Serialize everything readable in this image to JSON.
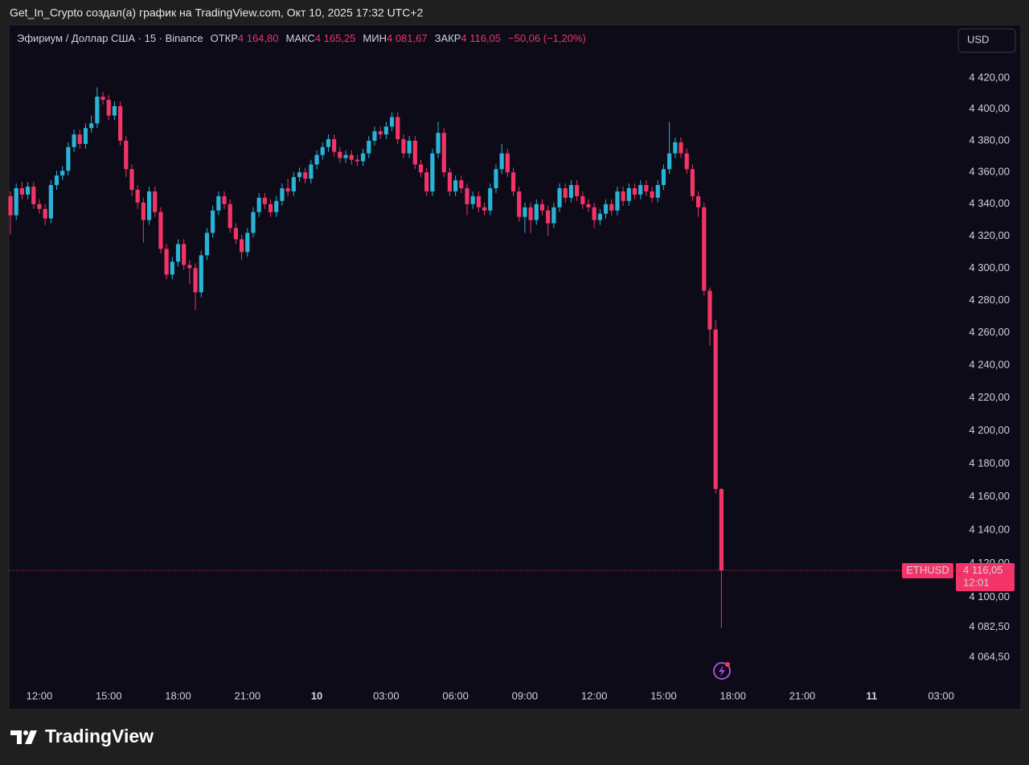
{
  "header": {
    "text": "Get_In_Crypto создал(а) график на TradingView.com, Окт 10, 2025 17:32 UTC+2"
  },
  "chart_data": {
    "type": "candlestick",
    "title": "Эфириум / Доллар США · 15 · Binance",
    "currency": "USD",
    "legend": [
      {
        "label": "ОТКР",
        "value": "4 164,80"
      },
      {
        "label": "МАКС",
        "value": "4 165,25"
      },
      {
        "label": "МИН",
        "value": "4 081,67"
      },
      {
        "label": "ЗАКР",
        "value": "4 116,05"
      }
    ],
    "change": "−50,06 (−1,20%)",
    "categories": [
      null,
      null,
      null,
      null,
      null,
      "12:00",
      null,
      null,
      null,
      null,
      null,
      null,
      null,
      null,
      null,
      null,
      null,
      "15:00",
      null,
      null,
      null,
      null,
      null,
      null,
      null,
      null,
      null,
      null,
      null,
      "18:00",
      null,
      null,
      null,
      null,
      null,
      null,
      null,
      null,
      null,
      null,
      null,
      "21:00",
      null,
      null,
      null,
      null,
      null,
      null,
      null,
      null,
      null,
      null,
      null,
      "10",
      null,
      null,
      null,
      null,
      null,
      null,
      null,
      null,
      null,
      null,
      null,
      "03:00",
      null,
      null,
      null,
      null,
      null,
      null,
      null,
      null,
      null,
      null,
      null,
      "06:00",
      null,
      null,
      null,
      null,
      null,
      null,
      null,
      null,
      null,
      null,
      null,
      "09:00",
      null,
      null,
      null,
      null,
      null,
      null,
      null,
      null,
      null,
      null,
      null,
      "12:00",
      null,
      null,
      null,
      null,
      null,
      null,
      null,
      null,
      null,
      null,
      null,
      "15:00",
      null,
      null,
      null,
      null,
      null,
      null,
      null,
      null,
      null,
      null,
      null,
      "18:00",
      null,
      null,
      null,
      null,
      null,
      null,
      null,
      null,
      null,
      null,
      null,
      "21:00",
      null,
      null,
      null,
      null,
      null,
      null,
      null,
      null,
      null,
      null,
      null,
      "11",
      null,
      null,
      null,
      null,
      null,
      null,
      null,
      null,
      null,
      null,
      null,
      "03:00"
    ],
    "open": [
      4345,
      4333,
      4350,
      4346,
      4351,
      4340,
      4337,
      4331,
      4352,
      4358,
      4361,
      4376,
      4384,
      4378,
      4388,
      4391,
      4408,
      4406,
      4396,
      4402,
      4380,
      4362,
      4349,
      4341,
      4330,
      4348,
      4335,
      4312,
      4296,
      4304,
      4315,
      4302,
      4300,
      4285,
      4308,
      4322,
      4336,
      4345,
      4340,
      4325,
      4318,
      4310,
      4322,
      4335,
      4344,
      4340,
      4335,
      4342,
      4350,
      4348,
      4357,
      4360,
      4356,
      4365,
      4371,
      4376,
      4381,
      4373,
      4369,
      4371,
      4368,
      4367,
      4372,
      4380,
      4386,
      4384,
      4389,
      4395,
      4381,
      4372,
      4380,
      4365,
      4360,
      4348,
      4372,
      4385,
      4360,
      4348,
      4355,
      4350,
      4340,
      4345,
      4338,
      4336,
      4350,
      4362,
      4372,
      4360,
      4348,
      4332,
      4338,
      4330,
      4340,
      4336,
      4328,
      4338,
      4350,
      4344,
      4352,
      4345,
      4340,
      4338,
      4330,
      4334,
      4340,
      4336,
      4348,
      4342,
      4350,
      4346,
      4352,
      4348,
      4344,
      4352,
      4362,
      4372,
      4379,
      4372,
      4362,
      4345,
      4338,
      4286,
      4262,
      4164.8,
      null,
      null,
      null,
      null,
      null,
      null,
      null,
      null,
      null,
      null,
      null,
      null,
      null,
      null,
      null,
      null,
      null,
      null,
      null,
      null,
      null,
      null,
      null,
      null,
      null,
      null,
      null,
      null,
      null,
      null,
      null,
      null,
      null,
      null,
      null,
      null,
      null,
      null
    ],
    "high": [
      4348,
      4353,
      4354,
      4354,
      4354,
      4343,
      4340,
      4355,
      4361,
      4364,
      4379,
      4387,
      4387,
      4391,
      4396,
      4414,
      4411,
      4409,
      4405,
      4405,
      4383,
      4365,
      4352,
      4344,
      4351,
      4351,
      4338,
      4315,
      4307,
      4318,
      4318,
      4305,
      4303,
      4311,
      4325,
      4339,
      4348,
      4348,
      4343,
      4328,
      4321,
      4325,
      4338,
      4347,
      4347,
      4343,
      4345,
      4353,
      4356,
      4360,
      4363,
      4363,
      4368,
      4374,
      4379,
      4384,
      4384,
      4376,
      4374,
      4374,
      4371,
      4375,
      4383,
      4389,
      4389,
      4392,
      4398,
      4398,
      4384,
      4383,
      4383,
      4368,
      4363,
      4375,
      4392,
      4388,
      4363,
      4358,
      4358,
      4353,
      4348,
      4348,
      4341,
      4353,
      4365,
      4378,
      4375,
      4363,
      4351,
      4341,
      4341,
      4343,
      4343,
      4339,
      4341,
      4353,
      4353,
      4355,
      4355,
      4348,
      4343,
      4341,
      4337,
      4343,
      4343,
      4351,
      4351,
      4353,
      4353,
      4355,
      4355,
      4351,
      4355,
      4365,
      4392,
      4382,
      4382,
      4375,
      4365,
      4348,
      4341,
      4288,
      4268,
      4165.25,
      null,
      null,
      null,
      null,
      null,
      null,
      null,
      null,
      null,
      null,
      null,
      null,
      null,
      null,
      null,
      null,
      null,
      null,
      null,
      null,
      null,
      null,
      null,
      null,
      null,
      null,
      null,
      null,
      null,
      null,
      null,
      null,
      null,
      null,
      null,
      null,
      null,
      null
    ],
    "low": [
      4321,
      4330,
      4343,
      4343,
      4337,
      4334,
      4327,
      4328,
      4349,
      4355,
      4358,
      4373,
      4375,
      4375,
      4385,
      4388,
      4403,
      4393,
      4393,
      4377,
      4357,
      4345,
      4337,
      4316,
      4327,
      4332,
      4309,
      4293,
      4293,
      4301,
      4299,
      4290,
      4274,
      4282,
      4305,
      4319,
      4333,
      4337,
      4322,
      4315,
      4305,
      4307,
      4319,
      4332,
      4337,
      4332,
      4332,
      4339,
      4345,
      4345,
      4354,
      4353,
      4353,
      4362,
      4368,
      4373,
      4370,
      4366,
      4366,
      4365,
      4364,
      4364,
      4369,
      4377,
      4381,
      4381,
      4386,
      4378,
      4369,
      4369,
      4362,
      4357,
      4345,
      4345,
      4369,
      4357,
      4345,
      4345,
      4347,
      4333,
      4337,
      4335,
      4333,
      4333,
      4347,
      4359,
      4357,
      4345,
      4329,
      4322,
      4322,
      4327,
      4333,
      4320,
      4325,
      4335,
      4341,
      4341,
      4342,
      4337,
      4335,
      4325,
      4327,
      4331,
      4333,
      4333,
      4339,
      4339,
      4343,
      4343,
      4345,
      4341,
      4341,
      4349,
      4359,
      4369,
      4369,
      4359,
      4342,
      4332,
      4283,
      4252,
      4162,
      4081.67,
      null,
      null,
      null,
      null,
      null,
      null,
      null,
      null,
      null,
      null,
      null,
      null,
      null,
      null,
      null,
      null,
      null,
      null,
      null,
      null,
      null,
      null,
      null,
      null,
      null,
      null,
      null,
      null,
      null,
      null,
      null,
      null,
      null,
      null,
      null,
      null,
      null,
      null
    ],
    "close": [
      4333,
      4350,
      4346,
      4351,
      4340,
      4337,
      4331,
      4352,
      4358,
      4361,
      4376,
      4384,
      4378,
      4388,
      4391,
      4408,
      4406,
      4396,
      4402,
      4380,
      4362,
      4349,
      4341,
      4330,
      4348,
      4335,
      4312,
      4296,
      4304,
      4315,
      4302,
      4300,
      4285,
      4308,
      4322,
      4336,
      4345,
      4340,
      4325,
      4318,
      4310,
      4322,
      4335,
      4344,
      4340,
      4335,
      4342,
      4350,
      4348,
      4357,
      4360,
      4356,
      4365,
      4371,
      4376,
      4381,
      4373,
      4369,
      4371,
      4368,
      4367,
      4372,
      4380,
      4386,
      4384,
      4389,
      4395,
      4381,
      4372,
      4380,
      4365,
      4360,
      4348,
      4372,
      4385,
      4360,
      4348,
      4355,
      4350,
      4340,
      4345,
      4338,
      4336,
      4350,
      4362,
      4372,
      4360,
      4348,
      4332,
      4338,
      4330,
      4340,
      4336,
      4328,
      4338,
      4350,
      4344,
      4352,
      4345,
      4340,
      4338,
      4330,
      4334,
      4340,
      4336,
      4348,
      4342,
      4350,
      4346,
      4352,
      4348,
      4344,
      4352,
      4362,
      4372,
      4379,
      4372,
      4362,
      4345,
      4338,
      4286,
      4262,
      4164.8,
      4116.05,
      null,
      null,
      null,
      null,
      null,
      null,
      null,
      null,
      null,
      null,
      null,
      null,
      null,
      null,
      null,
      null,
      null,
      null,
      null,
      null,
      null,
      null,
      null,
      null,
      null,
      null,
      null,
      null,
      null,
      null,
      null,
      null,
      null,
      null,
      null,
      null,
      null,
      null
    ],
    "up_color": "#2ab3d6",
    "down_color": "#f23468",
    "log_scale": true,
    "ylim": [
      4050,
      4454
    ],
    "yticks": [
      {
        "value": 4420,
        "label": "4 420,00"
      },
      {
        "value": 4400,
        "label": "4 400,00"
      },
      {
        "value": 4380,
        "label": "4 380,00"
      },
      {
        "value": 4360,
        "label": "4 360,00"
      },
      {
        "value": 4340,
        "label": "4 340,00"
      },
      {
        "value": 4320,
        "label": "4 320,00"
      },
      {
        "value": 4300,
        "label": "4 300,00"
      },
      {
        "value": 4280,
        "label": "4 280,00"
      },
      {
        "value": 4260,
        "label": "4 260,00"
      },
      {
        "value": 4240,
        "label": "4 240,00"
      },
      {
        "value": 4220,
        "label": "4 220,00"
      },
      {
        "value": 4200,
        "label": "4 200,00"
      },
      {
        "value": 4180,
        "label": "4 180,00"
      },
      {
        "value": 4160,
        "label": "4 160,00"
      },
      {
        "value": 4140,
        "label": "4 140,00"
      },
      {
        "value": 4120,
        "label": "4 120,00"
      },
      {
        "value": 4100,
        "label": "4 100,00"
      },
      {
        "value": 4082.5,
        "label": "4 082,50"
      },
      {
        "value": 4064.5,
        "label": "4 064,50"
      }
    ],
    "last_price": {
      "symbol": "ETHUSD",
      "label": "4 116,05",
      "countdown": "12:01"
    }
  },
  "footer": {
    "brand": "TradingView"
  }
}
